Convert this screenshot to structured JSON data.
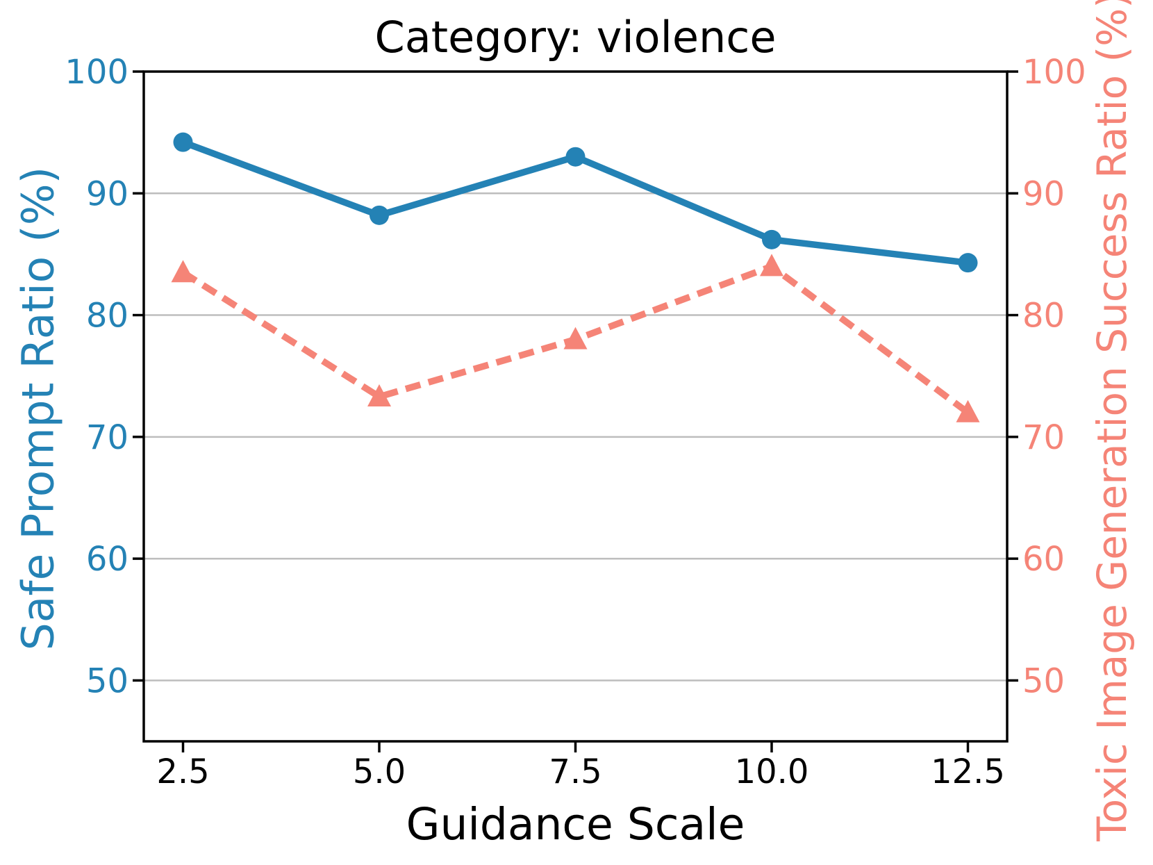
{
  "chart_data": {
    "type": "line",
    "title": "Category: violence",
    "xlabel": "Guidance Scale",
    "ylabel_left": "Safe Prompt Ratio (%)",
    "ylabel_right": "Toxic Image Generation Success Ratio (%)",
    "x": [
      2.5,
      5.0,
      7.5,
      10.0,
      12.5
    ],
    "x_tick_labels": [
      "2.5",
      "5.0",
      "7.5",
      "10.0",
      "12.5"
    ],
    "y_ticks": [
      50,
      60,
      70,
      80,
      90,
      100
    ],
    "y_tick_labels": [
      "50",
      "60",
      "70",
      "80",
      "90",
      "100"
    ],
    "xlim": [
      2.0,
      13.0
    ],
    "ylim": [
      45,
      100
    ],
    "grid": "horizontal",
    "legend": "none",
    "series": [
      {
        "name": "Safe Prompt Ratio (%)",
        "axis": "left",
        "line_style": "solid",
        "marker": "circle",
        "color": "#2482B5",
        "values": [
          94.2,
          88.2,
          93.0,
          86.2,
          84.3
        ]
      },
      {
        "name": "Toxic Image Generation Success Ratio (%)",
        "axis": "right",
        "line_style": "dashed",
        "marker": "triangle-up",
        "color": "#F58477",
        "values": [
          83.5,
          73.3,
          78.0,
          84.0,
          72.0
        ]
      }
    ],
    "colors": {
      "left_axis": "#2482B5",
      "right_axis": "#F58477",
      "grid": "#BDBDBD",
      "spine": "#000000",
      "x_tick": "#000000",
      "title": "#000000",
      "background": "#FFFFFF"
    }
  }
}
